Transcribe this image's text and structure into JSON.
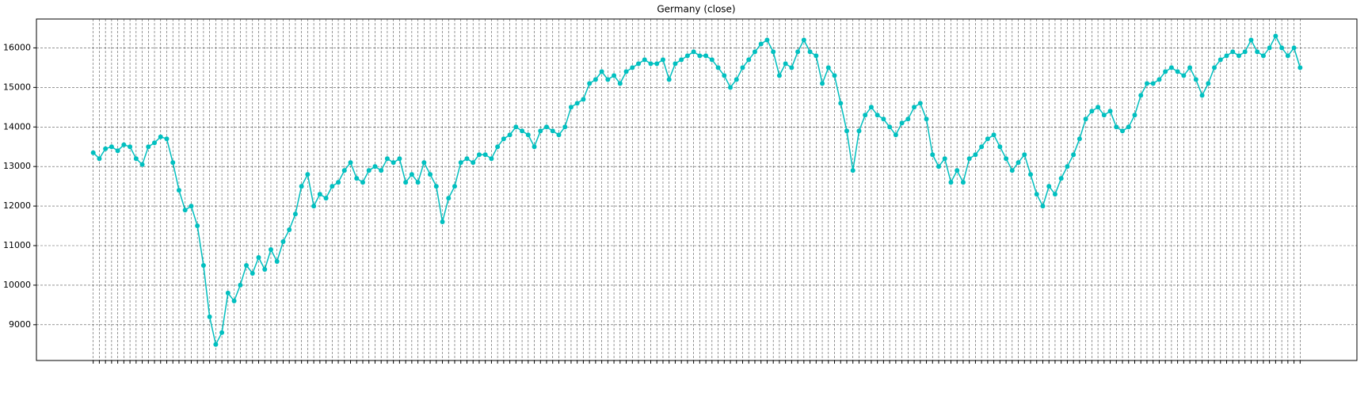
{
  "chart_data": {
    "type": "line",
    "title": "Germany (close)",
    "categories": [
      null,
      null,
      null,
      null,
      null,
      null,
      null,
      null,
      null,
      null,
      null,
      null,
      null,
      null,
      null,
      null,
      null,
      null,
      null,
      null,
      null,
      null,
      null,
      null,
      null,
      null,
      null,
      null,
      null,
      null,
      null,
      null,
      null,
      null,
      null,
      null,
      null,
      null,
      null,
      null,
      null,
      null,
      null,
      null,
      null,
      null,
      null,
      null,
      null,
      null,
      null,
      null,
      null,
      null,
      null,
      null,
      null,
      null,
      null,
      null,
      null,
      null,
      null,
      null,
      null,
      null,
      null,
      null,
      null,
      null,
      null,
      null,
      null,
      null,
      null,
      null,
      null,
      null,
      null,
      null,
      null,
      null,
      null,
      null,
      null,
      null,
      null,
      null,
      null,
      null,
      null,
      null,
      null,
      null,
      null,
      null,
      null,
      null,
      null,
      null,
      null,
      null,
      null,
      null,
      null,
      null,
      null,
      null,
      null,
      null,
      null,
      null,
      null,
      null,
      null,
      null,
      null,
      null,
      null,
      null,
      null,
      null,
      null,
      null,
      null,
      null,
      null,
      null,
      null,
      null,
      null,
      null,
      null,
      null,
      null,
      null,
      null,
      null,
      null,
      null,
      null,
      null,
      null,
      null,
      null,
      null,
      null,
      null,
      null,
      null,
      null,
      null,
      null,
      null,
      null,
      null,
      null,
      null,
      null,
      null,
      null,
      null,
      null,
      null,
      null,
      null,
      null,
      null,
      null,
      null,
      null,
      null,
      null,
      null,
      null,
      null,
      null,
      null,
      null,
      null,
      null,
      null,
      null,
      null,
      null,
      null,
      null,
      null,
      null,
      null,
      null,
      null,
      null,
      null,
      null,
      null,
      null,
      null
    ],
    "series": [
      {
        "color": "#00bfbf",
        "values": [
          13350,
          13200,
          13450,
          13500,
          13400,
          13550,
          13500,
          13200,
          13050,
          13500,
          13600,
          13750,
          13700,
          13100,
          12400,
          11900,
          12000,
          11500,
          10500,
          9200,
          8500,
          8800,
          9800,
          9600,
          10000,
          10500,
          10300,
          10700,
          10400,
          10900,
          10600,
          11100,
          11400,
          11800,
          12500,
          12800,
          12000,
          12300,
          12200,
          12500,
          12600,
          12900,
          13100,
          12700,
          12600,
          12900,
          13000,
          12900,
          13200,
          13100,
          13200,
          12600,
          12800,
          12600,
          13100,
          12800,
          12500,
          11600,
          12200,
          12500,
          13100,
          13200,
          13100,
          13300,
          13300,
          13200,
          13500,
          13700,
          13800,
          14000,
          13900,
          13800,
          13500,
          13900,
          14000,
          13900,
          13800,
          14000,
          14500,
          14600,
          14700,
          15100,
          15200,
          15400,
          15200,
          15300,
          15100,
          15400,
          15500,
          15600,
          15700,
          15600,
          15600,
          15700,
          15200,
          15600,
          15700,
          15800,
          15900,
          15800,
          15800,
          15700,
          15500,
          15300,
          15000,
          15200,
          15500,
          15700,
          15900,
          16100,
          16200,
          15900,
          15300,
          15600,
          15500,
          15900,
          16200,
          15900,
          15800,
          15100,
          15500,
          15300,
          14600,
          13900,
          12900,
          13900,
          14300,
          14500,
          14300,
          14200,
          14000,
          13800,
          14100,
          14200,
          14500,
          14600,
          14200,
          13300,
          13000,
          13200,
          12600,
          12900,
          12600,
          13200,
          13300,
          13500,
          13700,
          13800,
          13500,
          13200,
          12900,
          13100,
          13300,
          12800,
          12300,
          12000,
          12500,
          12300,
          12700,
          13000,
          13300,
          13700,
          14200,
          14400,
          14500,
          14300,
          14400,
          14000,
          13900,
          14000,
          14300,
          14800,
          15100,
          15100,
          15200,
          15400,
          15500,
          15400,
          15300,
          15500,
          15200,
          14800,
          15100,
          15500,
          15700,
          15800,
          15900,
          15800,
          15900,
          16200,
          15900,
          15800,
          16000,
          16300,
          16000,
          15800,
          16000,
          15500
        ]
      }
    ],
    "ylim": [
      8095,
      16730
    ],
    "yticks": [
      9000,
      10000,
      11000,
      12000,
      13000,
      14000,
      15000,
      16000
    ],
    "grid": true
  }
}
